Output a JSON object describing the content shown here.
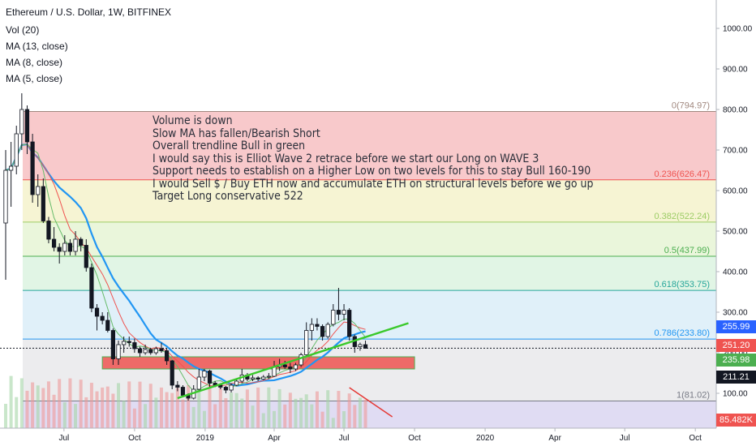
{
  "header": {
    "title": "Ethereum / U.S. Dollar, 1W, BITFINEX",
    "indicators": [
      "Vol (20)",
      "MA (13, close)",
      "MA (8, close)",
      "MA (5, close)"
    ]
  },
  "annotation": {
    "lines": [
      "Volume is down",
      "Slow MA has fallen/Bearish Short",
      "Overall trendline Bull in green",
      "I would say this is Elliot Wave 2 retrace before we start our Long on WAVE 3",
      "Support needs to establish on a Higher Low on two levels for this to stay Bull 160-190",
      "I would Sell $ / Buy ETH now and accumulate ETH on structural levels before we go up",
      "Target Long conservative 522"
    ]
  },
  "price_badges": [
    {
      "label": "255.99",
      "value": 255.99,
      "color": "#2962ff"
    },
    {
      "label": "251.20",
      "value": 251.2,
      "color": "#ef5350"
    },
    {
      "label": "235.98",
      "value": 235.98,
      "color": "#4caf50"
    },
    {
      "label": "211.21",
      "value": 211.21,
      "color": "#131722"
    },
    {
      "label": "85.482K",
      "value": 85.482,
      "color": "#ef5350"
    }
  ],
  "chart_data": {
    "type": "candlestick",
    "title": "Ethereum / U.S. Dollar, 1W, BITFINEX",
    "y_axis": {
      "ticks": [
        "1000.00",
        "900.00",
        "800.00",
        "700.00",
        "600.00",
        "500.00",
        "400.00",
        "300.00",
        "200.00",
        "100.00"
      ],
      "ylim": [
        60,
        1040
      ]
    },
    "x_axis": {
      "ticks": [
        "Jul",
        "Oct",
        "2019",
        "Apr",
        "Jul",
        "Oct",
        "2020",
        "Apr",
        "Jul",
        "Oct"
      ]
    },
    "fibonacci": [
      {
        "ratio": "0",
        "label": "0(794.97)",
        "price": 794.97,
        "color": "#a1887f"
      },
      {
        "ratio": "0.236",
        "label": "0.236(626.47)",
        "price": 626.47,
        "color": "#ef5350"
      },
      {
        "ratio": "0.382",
        "label": "0.382(522.24)",
        "price": 522.24,
        "color": "#9ccc65"
      },
      {
        "ratio": "0.5",
        "label": "0.5(437.99)",
        "price": 437.99,
        "color": "#4caf50"
      },
      {
        "ratio": "0.618",
        "label": "0.618(353.75)",
        "price": 353.75,
        "color": "#26a69a"
      },
      {
        "ratio": "0.786",
        "label": "0.786(233.80)",
        "price": 233.8,
        "color": "#2196f3"
      },
      {
        "ratio": "1",
        "label": "1(81.02)",
        "price": 81.02,
        "color": "#787b86"
      }
    ],
    "candles": [
      {
        "x": "2018-04-16",
        "o": 520,
        "h": 700,
        "l": 380,
        "c": 650
      },
      {
        "x": "2018-04-23",
        "o": 650,
        "h": 720,
        "l": 560,
        "c": 660
      },
      {
        "x": "2018-04-30",
        "o": 660,
        "h": 760,
        "l": 640,
        "c": 740
      },
      {
        "x": "2018-05-07",
        "o": 740,
        "h": 840,
        "l": 700,
        "c": 800
      },
      {
        "x": "2018-05-14",
        "o": 800,
        "h": 810,
        "l": 690,
        "c": 720
      },
      {
        "x": "2018-05-21",
        "o": 720,
        "h": 740,
        "l": 570,
        "c": 590
      },
      {
        "x": "2018-05-28",
        "o": 590,
        "h": 640,
        "l": 560,
        "c": 610
      },
      {
        "x": "2018-06-04",
        "o": 610,
        "h": 630,
        "l": 520,
        "c": 525
      },
      {
        "x": "2018-06-11",
        "o": 525,
        "h": 535,
        "l": 470,
        "c": 480
      },
      {
        "x": "2018-06-18",
        "o": 480,
        "h": 510,
        "l": 450,
        "c": 460
      },
      {
        "x": "2018-06-25",
        "o": 460,
        "h": 470,
        "l": 420,
        "c": 450
      },
      {
        "x": "2018-07-02",
        "o": 450,
        "h": 490,
        "l": 440,
        "c": 470
      },
      {
        "x": "2018-07-09",
        "o": 470,
        "h": 480,
        "l": 440,
        "c": 450
      },
      {
        "x": "2018-07-16",
        "o": 450,
        "h": 500,
        "l": 440,
        "c": 480
      },
      {
        "x": "2018-07-23",
        "o": 480,
        "h": 485,
        "l": 450,
        "c": 465
      },
      {
        "x": "2018-07-30",
        "o": 465,
        "h": 480,
        "l": 400,
        "c": 410
      },
      {
        "x": "2018-08-06",
        "o": 410,
        "h": 420,
        "l": 300,
        "c": 310
      },
      {
        "x": "2018-08-13",
        "o": 310,
        "h": 320,
        "l": 255,
        "c": 290
      },
      {
        "x": "2018-08-20",
        "o": 290,
        "h": 300,
        "l": 270,
        "c": 280
      },
      {
        "x": "2018-08-27",
        "o": 280,
        "h": 300,
        "l": 250,
        "c": 255
      },
      {
        "x": "2018-09-03",
        "o": 255,
        "h": 260,
        "l": 170,
        "c": 185
      },
      {
        "x": "2018-09-10",
        "o": 185,
        "h": 230,
        "l": 170,
        "c": 220
      },
      {
        "x": "2018-09-17",
        "o": 220,
        "h": 240,
        "l": 200,
        "c": 228
      },
      {
        "x": "2018-09-24",
        "o": 228,
        "h": 240,
        "l": 215,
        "c": 225
      },
      {
        "x": "2018-10-01",
        "o": 225,
        "h": 235,
        "l": 200,
        "c": 210
      },
      {
        "x": "2018-10-08",
        "o": 210,
        "h": 215,
        "l": 190,
        "c": 200
      },
      {
        "x": "2018-10-15",
        "o": 200,
        "h": 220,
        "l": 195,
        "c": 208
      },
      {
        "x": "2018-10-22",
        "o": 208,
        "h": 212,
        "l": 195,
        "c": 200
      },
      {
        "x": "2018-10-29",
        "o": 200,
        "h": 215,
        "l": 195,
        "c": 210
      },
      {
        "x": "2018-11-05",
        "o": 210,
        "h": 225,
        "l": 200,
        "c": 205
      },
      {
        "x": "2018-11-12",
        "o": 205,
        "h": 210,
        "l": 170,
        "c": 180
      },
      {
        "x": "2018-11-19",
        "o": 180,
        "h": 182,
        "l": 110,
        "c": 120
      },
      {
        "x": "2018-11-26",
        "o": 120,
        "h": 130,
        "l": 105,
        "c": 115
      },
      {
        "x": "2018-12-03",
        "o": 115,
        "h": 120,
        "l": 90,
        "c": 95
      },
      {
        "x": "2018-12-10",
        "o": 95,
        "h": 100,
        "l": 82,
        "c": 88
      },
      {
        "x": "2018-12-17",
        "o": 88,
        "h": 120,
        "l": 85,
        "c": 110
      },
      {
        "x": "2018-12-24",
        "o": 110,
        "h": 160,
        "l": 105,
        "c": 140
      },
      {
        "x": "2018-12-31",
        "o": 140,
        "h": 160,
        "l": 130,
        "c": 155
      },
      {
        "x": "2019-01-07",
        "o": 155,
        "h": 158,
        "l": 115,
        "c": 125
      },
      {
        "x": "2019-01-14",
        "o": 125,
        "h": 130,
        "l": 115,
        "c": 120
      },
      {
        "x": "2019-01-21",
        "o": 120,
        "h": 125,
        "l": 110,
        "c": 115
      },
      {
        "x": "2019-01-28",
        "o": 115,
        "h": 118,
        "l": 100,
        "c": 108
      },
      {
        "x": "2019-02-04",
        "o": 108,
        "h": 125,
        "l": 102,
        "c": 120
      },
      {
        "x": "2019-02-11",
        "o": 120,
        "h": 135,
        "l": 118,
        "c": 130
      },
      {
        "x": "2019-02-18",
        "o": 130,
        "h": 160,
        "l": 125,
        "c": 145
      },
      {
        "x": "2019-02-25",
        "o": 145,
        "h": 150,
        "l": 130,
        "c": 135
      },
      {
        "x": "2019-03-04",
        "o": 135,
        "h": 145,
        "l": 130,
        "c": 138
      },
      {
        "x": "2019-03-11",
        "o": 138,
        "h": 142,
        "l": 130,
        "c": 135
      },
      {
        "x": "2019-03-18",
        "o": 135,
        "h": 145,
        "l": 133,
        "c": 140
      },
      {
        "x": "2019-03-25",
        "o": 140,
        "h": 150,
        "l": 135,
        "c": 142
      },
      {
        "x": "2019-04-01",
        "o": 142,
        "h": 180,
        "l": 140,
        "c": 165
      },
      {
        "x": "2019-04-08",
        "o": 165,
        "h": 185,
        "l": 155,
        "c": 170
      },
      {
        "x": "2019-04-15",
        "o": 170,
        "h": 180,
        "l": 160,
        "c": 165
      },
      {
        "x": "2019-04-22",
        "o": 165,
        "h": 175,
        "l": 150,
        "c": 160
      },
      {
        "x": "2019-04-29",
        "o": 160,
        "h": 175,
        "l": 155,
        "c": 170
      },
      {
        "x": "2019-05-06",
        "o": 170,
        "h": 200,
        "l": 165,
        "c": 195
      },
      {
        "x": "2019-05-13",
        "o": 195,
        "h": 275,
        "l": 190,
        "c": 255
      },
      {
        "x": "2019-05-20",
        "o": 255,
        "h": 285,
        "l": 230,
        "c": 270
      },
      {
        "x": "2019-05-27",
        "o": 270,
        "h": 285,
        "l": 255,
        "c": 265
      },
      {
        "x": "2019-06-03",
        "o": 265,
        "h": 270,
        "l": 230,
        "c": 240
      },
      {
        "x": "2019-06-10",
        "o": 240,
        "h": 275,
        "l": 235,
        "c": 270
      },
      {
        "x": "2019-06-17",
        "o": 270,
        "h": 320,
        "l": 265,
        "c": 305
      },
      {
        "x": "2019-06-24",
        "o": 305,
        "h": 360,
        "l": 280,
        "c": 295
      },
      {
        "x": "2019-07-01",
        "o": 295,
        "h": 320,
        "l": 280,
        "c": 305
      },
      {
        "x": "2019-07-08",
        "o": 305,
        "h": 310,
        "l": 230,
        "c": 240
      },
      {
        "x": "2019-07-15",
        "o": 240,
        "h": 245,
        "l": 200,
        "c": 215
      },
      {
        "x": "2019-07-22",
        "o": 215,
        "h": 225,
        "l": 205,
        "c": 220
      },
      {
        "x": "2019-07-29",
        "o": 220,
        "h": 230,
        "l": 210,
        "c": 211
      }
    ],
    "moving_averages": [
      {
        "name": "MA (13, close)",
        "color": "#2196f3"
      },
      {
        "name": "MA (8, close)",
        "color": "#ef5350"
      },
      {
        "name": "MA (5, close)",
        "color": "#66bb6a"
      }
    ],
    "support_zone": {
      "from": "2018-08-20",
      "to": "2019-10-01",
      "low": 160,
      "high": 190
    },
    "trendline": {
      "from": {
        "x": "2018-11-26",
        "y": 88
      },
      "to": {
        "x": "2019-09-23",
        "y": 273
      },
      "color": "#3ac92b"
    }
  }
}
